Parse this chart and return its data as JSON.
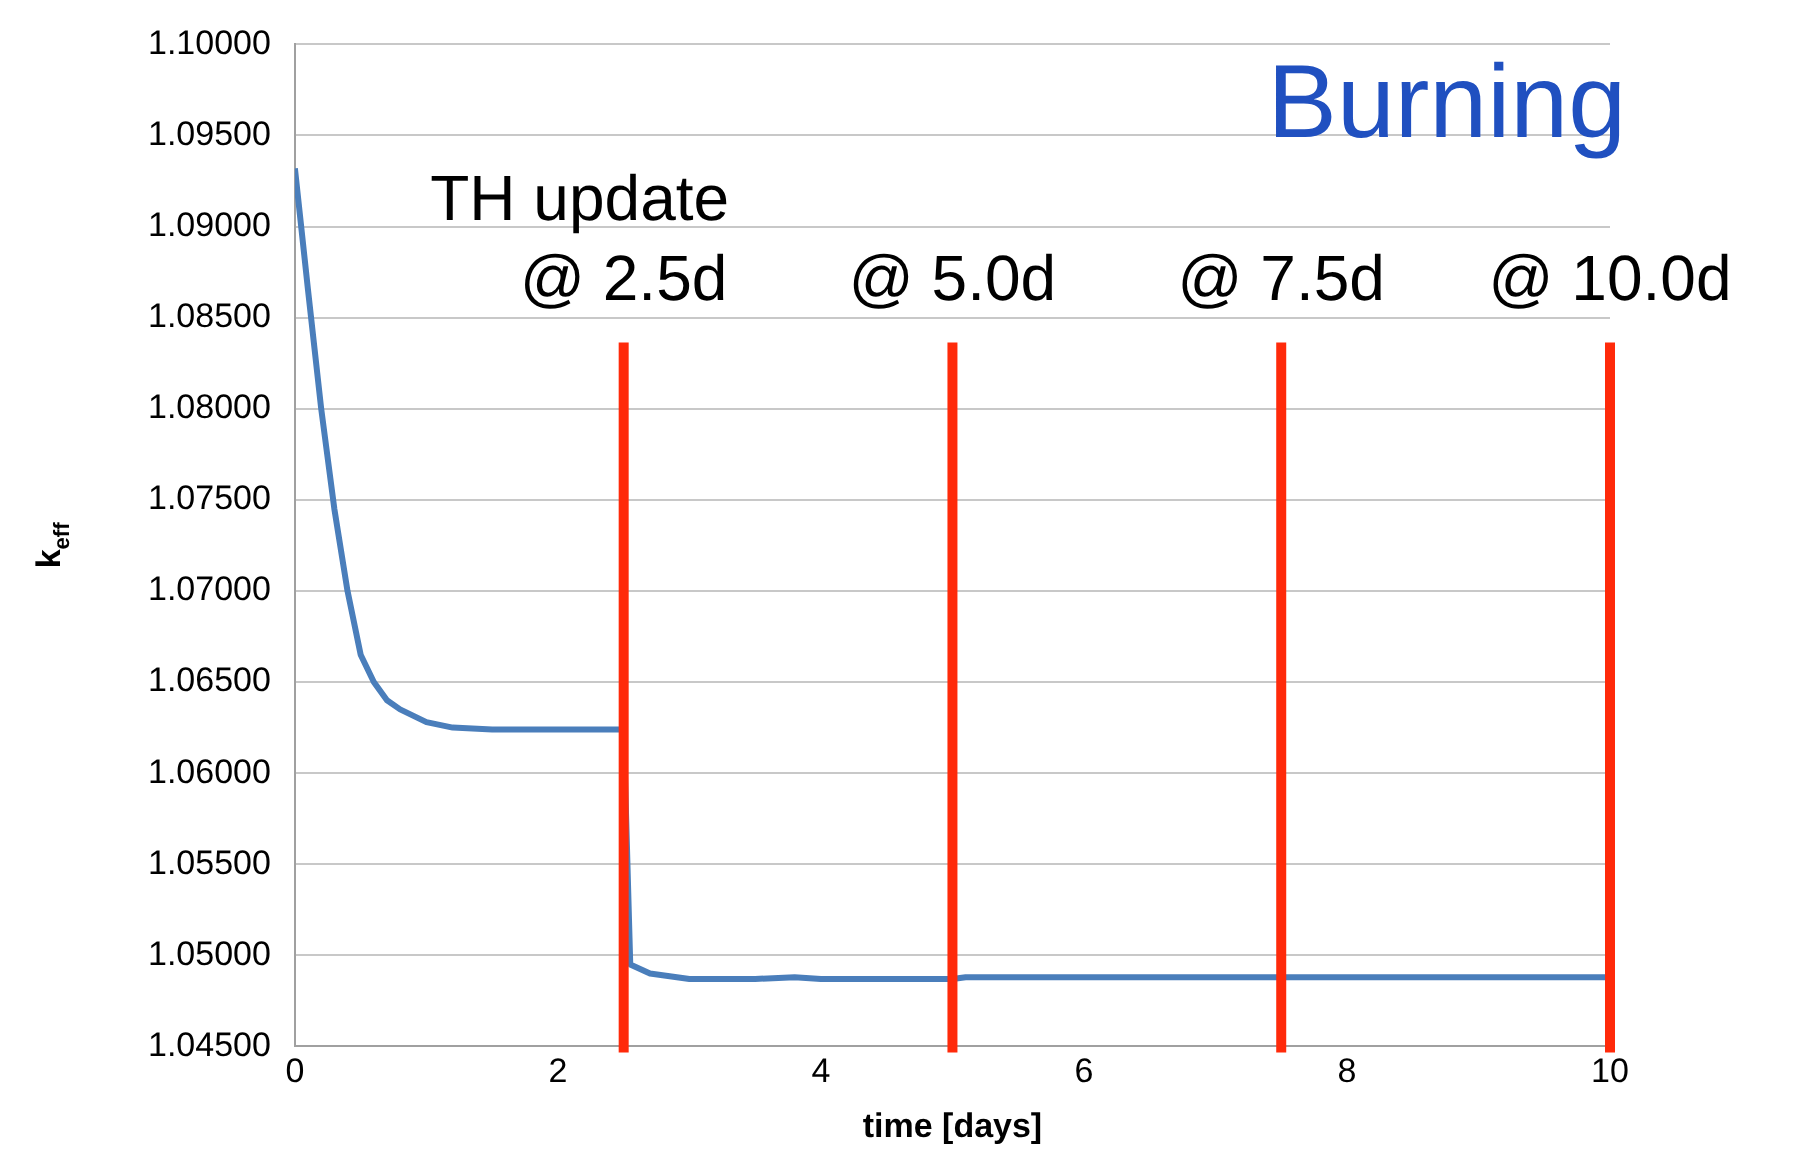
{
  "chart_data": {
    "type": "line",
    "xlabel": "time [days]",
    "ylabel": "k$_{eff}$",
    "annotations": [
      "Burning",
      "TH update"
    ],
    "x": [
      0,
      0.1,
      0.2,
      0.3,
      0.4,
      0.5,
      0.6,
      0.7,
      0.8,
      1.0,
      1.2,
      1.5,
      2.0,
      2.5,
      2.55,
      2.7,
      3.0,
      3.5,
      3.8,
      4.0,
      5.0,
      5.1,
      6.0,
      8.0,
      10.0
    ],
    "series": [
      {
        "color": "#4a7ebb",
        "values": [
          1.0932,
          1.0865,
          1.08,
          1.0745,
          1.07,
          1.0665,
          1.065,
          1.064,
          1.0635,
          1.0628,
          1.0625,
          1.0624,
          1.0624,
          1.0624,
          1.0495,
          1.049,
          1.0487,
          1.0487,
          1.0488,
          1.0487,
          1.0487,
          1.0488,
          1.0488,
          1.0488,
          1.0488
        ]
      }
    ],
    "xlim": [
      0,
      10
    ],
    "xticks": [
      0,
      2,
      4,
      6,
      8,
      10
    ],
    "ylim": [
      1.045,
      1.1
    ],
    "yticks": [
      {
        "value": 1.045,
        "label": "1.04500"
      },
      {
        "value": 1.05,
        "label": "1.05000"
      },
      {
        "value": 1.055,
        "label": "1.05500"
      },
      {
        "value": 1.06,
        "label": "1.06000"
      },
      {
        "value": 1.065,
        "label": "1.06500"
      },
      {
        "value": 1.07,
        "label": "1.07000"
      },
      {
        "value": 1.075,
        "label": "1.07500"
      },
      {
        "value": 1.08,
        "label": "1.08000"
      },
      {
        "value": 1.085,
        "label": "1.08500"
      },
      {
        "value": 1.09,
        "label": "1.09000"
      },
      {
        "value": 1.095,
        "label": "1.09500"
      },
      {
        "value": 1.1,
        "label": "1.10000"
      }
    ],
    "ref_lines": [
      {
        "axis": "x",
        "value": 2.5,
        "label": "@ 2.5d",
        "color": "#ff2a0a"
      },
      {
        "axis": "x",
        "value": 5.0,
        "label": "@ 5.0d",
        "color": "#ff2a0a"
      },
      {
        "axis": "x",
        "value": 7.5,
        "label": "@ 7.5d",
        "color": "#ff2a0a"
      },
      {
        "axis": "x",
        "value": 10.0,
        "label": "@ 10.0d",
        "color": "#ff2a0a"
      }
    ],
    "grid": "y",
    "legend": false,
    "marker": "none",
    "line_style": "solid"
  }
}
